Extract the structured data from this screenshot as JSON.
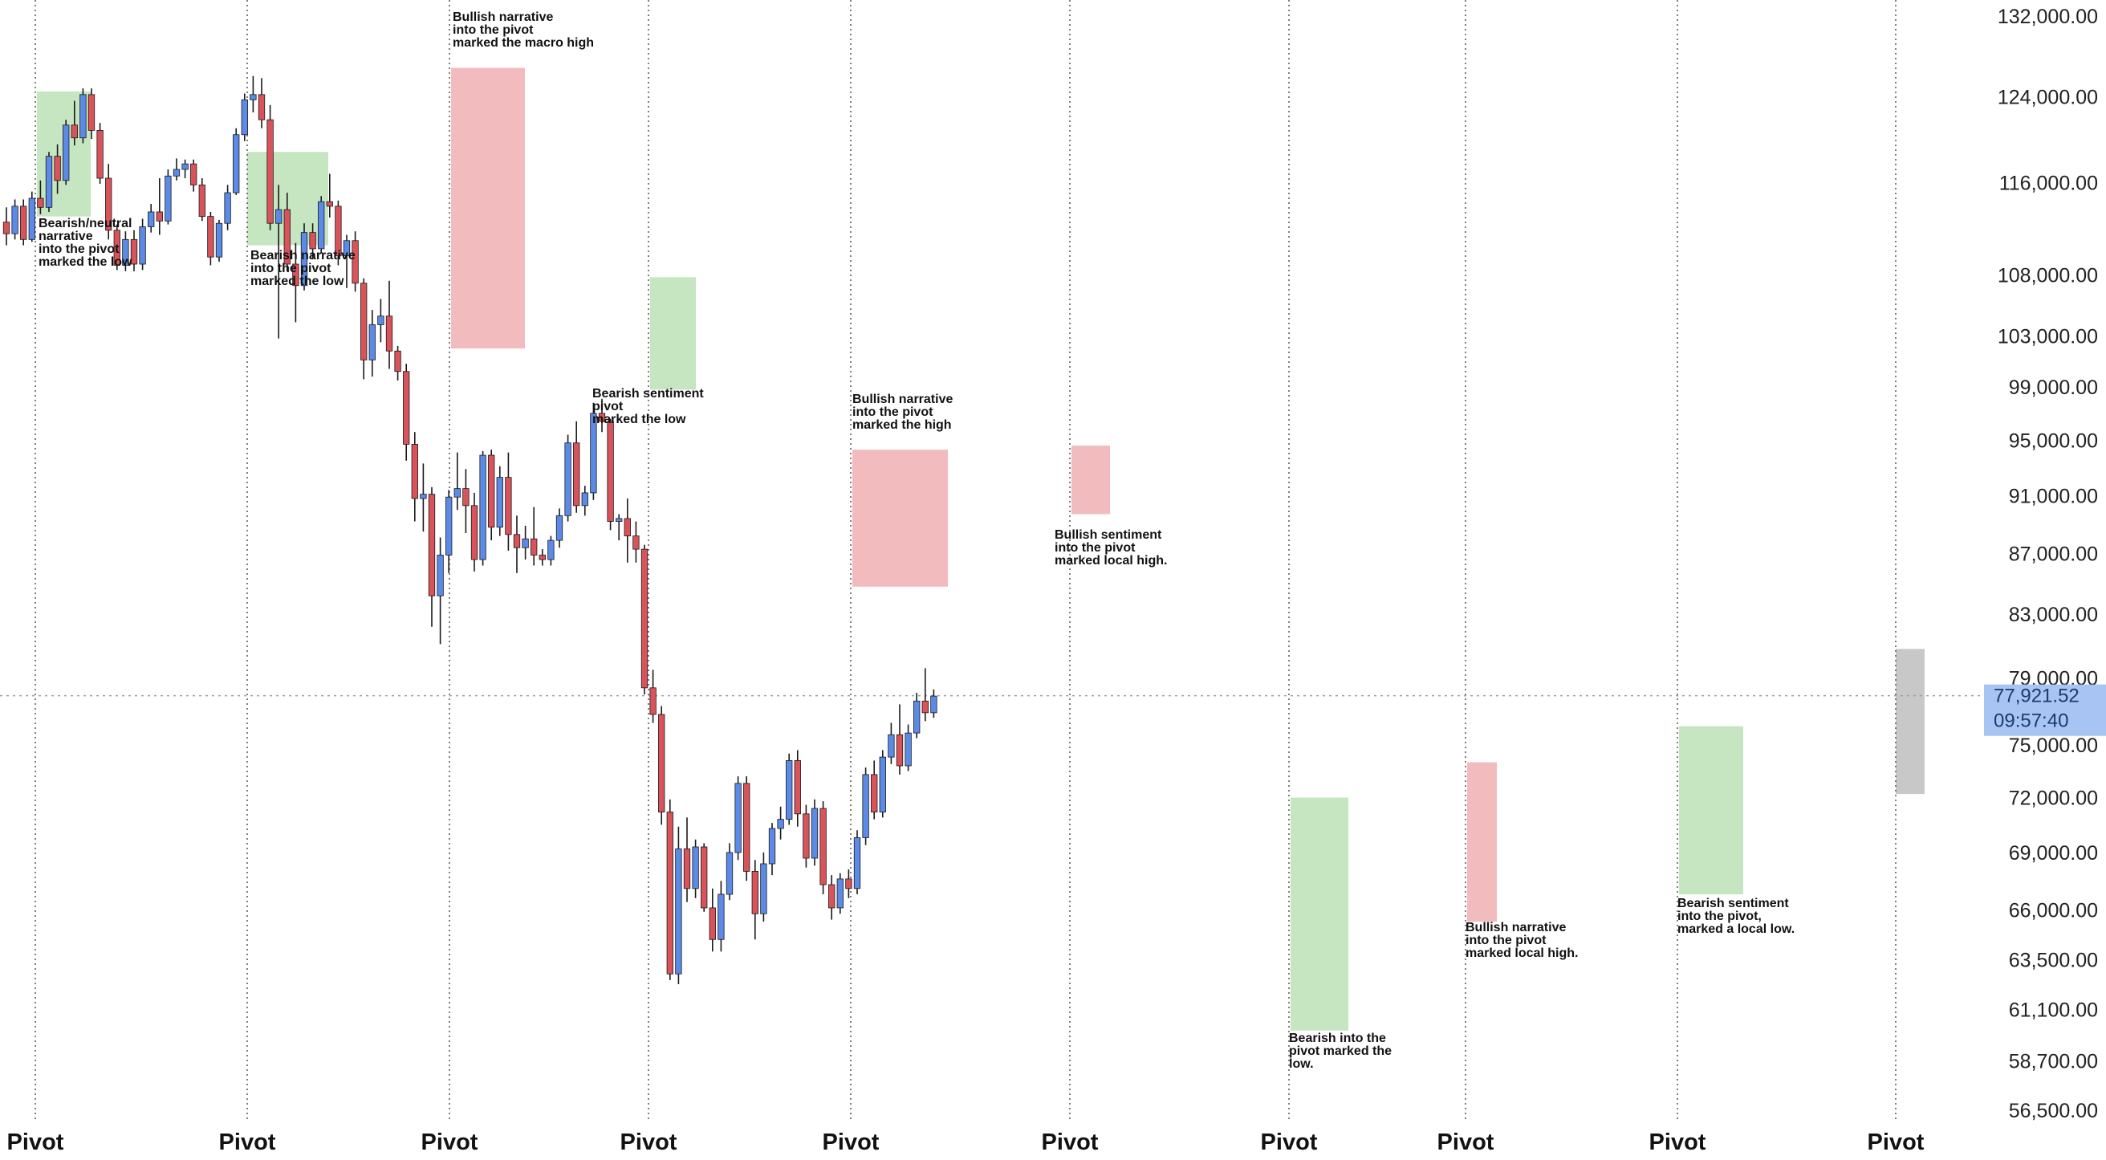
{
  "colors": {
    "up": "#5b8be6",
    "down": "#d9535b",
    "zone_green": "#c6e5c1",
    "zone_red": "#f2bbbe",
    "zone_grey": "#c8c8c8",
    "price_tag": "#a8c4f3"
  },
  "chart_data": {
    "type": "candlestick",
    "title": "",
    "ylabel": "",
    "xlabel": "",
    "ylim": [
      56500,
      132000
    ],
    "y_scale": "log",
    "y_ticks": [
      "132,000.00",
      "124,000.00",
      "116,000.00",
      "108,000.00",
      "103,000.00",
      "99,000.00",
      "95,000.00",
      "91,000.00",
      "87,000.00",
      "83,000.00",
      "79,000.00",
      "75,000.00",
      "72,000.00",
      "69,000.00",
      "66,000.00",
      "63,500.00",
      "61,100.00",
      "58,700.00",
      "56,500.00"
    ],
    "y_tick_values": [
      132000,
      124000,
      116000,
      108000,
      103000,
      99000,
      95000,
      91000,
      87000,
      83000,
      79000,
      75000,
      72000,
      69000,
      66000,
      63500,
      61100,
      58700,
      56500
    ],
    "x_labels": [
      "Pivot",
      "Pivot",
      "Pivot",
      "Pivot",
      "Pivot",
      "Pivot",
      "Pivot",
      "Pivot",
      "Pivot",
      "Pivot"
    ],
    "current_price": "77,921.52",
    "current_price_value": 77921.52,
    "countdown": "09:57:40",
    "series": [
      {
        "ohlc": [
          [
            112500,
            113800,
            110500,
            111500
          ],
          [
            111500,
            114500,
            111000,
            113900
          ],
          [
            113900,
            114500,
            110500,
            111000
          ],
          [
            111000,
            115200,
            110800,
            114600
          ],
          [
            114600,
            116200,
            113200,
            113800
          ],
          [
            113800,
            118800,
            113400,
            118400
          ],
          [
            118400,
            119500,
            115000,
            116200
          ],
          [
            116200,
            121800,
            115800,
            121300
          ],
          [
            121300,
            123600,
            119400,
            120100
          ],
          [
            120100,
            124800,
            119600,
            124200
          ],
          [
            124200,
            124800,
            120000,
            120800
          ],
          [
            120800,
            121500,
            115900,
            116400
          ],
          [
            116400,
            117700,
            111000,
            111800
          ],
          [
            111800,
            112300,
            108400,
            108800
          ],
          [
            108800,
            111700,
            108300,
            111000
          ],
          [
            111000,
            111800,
            108300,
            108900
          ],
          [
            108900,
            112800,
            108400,
            112100
          ],
          [
            112100,
            114100,
            111600,
            113400
          ],
          [
            113400,
            116400,
            111400,
            112600
          ],
          [
            112600,
            117200,
            112300,
            116600
          ],
          [
            116600,
            118200,
            116200,
            117200
          ],
          [
            117200,
            118100,
            116400,
            117700
          ],
          [
            117700,
            118100,
            115200,
            115800
          ],
          [
            115800,
            116400,
            112600,
            113000
          ],
          [
            113000,
            113400,
            108800,
            109500
          ],
          [
            109500,
            112700,
            109100,
            112400
          ],
          [
            112400,
            115800,
            111800,
            115100
          ],
          [
            115100,
            121000,
            114900,
            120400
          ],
          [
            120400,
            124300,
            119800,
            123700
          ],
          [
            123700,
            126000,
            122500,
            124200
          ],
          [
            124200,
            125800,
            121000,
            121800
          ],
          [
            121800,
            123200,
            111800,
            112400
          ],
          [
            112400,
            115800,
            102800,
            113600
          ],
          [
            113600,
            115100,
            108300,
            108900
          ],
          [
            108900,
            110700,
            104100,
            107100
          ],
          [
            107100,
            112400,
            106700,
            111600
          ],
          [
            111600,
            112400,
            109300,
            110200
          ],
          [
            110200,
            114800,
            109800,
            114300
          ],
          [
            114300,
            116800,
            112900,
            113900
          ],
          [
            113900,
            114400,
            108800,
            109600
          ],
          [
            109600,
            111400,
            106900,
            110900
          ],
          [
            110900,
            111700,
            106600,
            107300
          ],
          [
            107300,
            107700,
            99600,
            101100
          ],
          [
            101100,
            105100,
            99800,
            103900
          ],
          [
            103900,
            106000,
            102500,
            104600
          ],
          [
            104600,
            107500,
            100400,
            101800
          ],
          [
            101800,
            102200,
            99500,
            100200
          ],
          [
            100200,
            100800,
            93500,
            94700
          ],
          [
            94700,
            95600,
            89200,
            90800
          ],
          [
            90800,
            93300,
            88500,
            91100
          ],
          [
            91100,
            91600,
            82200,
            84200
          ],
          [
            84200,
            88100,
            81100,
            86900
          ],
          [
            86900,
            91400,
            85700,
            90900
          ],
          [
            90900,
            94100,
            90000,
            91500
          ],
          [
            91500,
            92900,
            88400,
            90300
          ],
          [
            90300,
            91200,
            85800,
            86600
          ],
          [
            86600,
            94200,
            86200,
            93900
          ],
          [
            93900,
            94300,
            87900,
            88800
          ],
          [
            88800,
            93100,
            88200,
            92300
          ],
          [
            92300,
            94100,
            87200,
            88300
          ],
          [
            88300,
            89600,
            85700,
            87400
          ],
          [
            87400,
            88900,
            86600,
            88000
          ],
          [
            88000,
            90200,
            86200,
            86900
          ],
          [
            86900,
            87300,
            86200,
            86600
          ],
          [
            86600,
            88200,
            86200,
            87900
          ],
          [
            87900,
            90100,
            87400,
            89600
          ],
          [
            89600,
            95400,
            89200,
            94800
          ],
          [
            94800,
            96400,
            89800,
            90300
          ],
          [
            90300,
            91700,
            89600,
            91200
          ],
          [
            91200,
            97800,
            90700,
            97000
          ],
          [
            97000,
            98100,
            95600,
            96400
          ],
          [
            96400,
            96600,
            88600,
            89200
          ],
          [
            89200,
            89700,
            87900,
            89400
          ],
          [
            89400,
            90800,
            86400,
            88200
          ],
          [
            88200,
            89200,
            86400,
            87300
          ],
          [
            87300,
            87600,
            78000,
            78400
          ],
          [
            78400,
            79500,
            76300,
            76800
          ],
          [
            76800,
            77300,
            70500,
            71200
          ],
          [
            71200,
            71900,
            62500,
            62800
          ],
          [
            62800,
            70400,
            62300,
            69200
          ],
          [
            69200,
            70900,
            66400,
            67100
          ],
          [
            67100,
            69700,
            66600,
            69300
          ],
          [
            69300,
            69500,
            65900,
            66100
          ],
          [
            66100,
            67100,
            63900,
            64500
          ],
          [
            64500,
            67500,
            63900,
            66800
          ],
          [
            66800,
            69500,
            66500,
            69000
          ],
          [
            69000,
            73200,
            68600,
            72800
          ],
          [
            72800,
            73200,
            67500,
            68000
          ],
          [
            68000,
            68600,
            64500,
            65800
          ],
          [
            65800,
            69000,
            65400,
            68400
          ],
          [
            68400,
            70600,
            67800,
            70300
          ],
          [
            70300,
            71500,
            69700,
            70800
          ],
          [
            70800,
            74500,
            70500,
            74100
          ],
          [
            74100,
            74700,
            70400,
            71100
          ],
          [
            71100,
            71600,
            68200,
            68700
          ],
          [
            68700,
            71900,
            68300,
            71400
          ],
          [
            71400,
            71800,
            66800,
            67300
          ],
          [
            67300,
            67800,
            65500,
            66100
          ],
          [
            66100,
            67900,
            65800,
            67600
          ],
          [
            67600,
            68100,
            66600,
            67100
          ],
          [
            67100,
            70200,
            66800,
            69800
          ],
          [
            69800,
            73700,
            69400,
            73300
          ],
          [
            73300,
            74100,
            70800,
            71200
          ],
          [
            71200,
            74700,
            70900,
            74300
          ],
          [
            74300,
            76300,
            73900,
            75600
          ],
          [
            75600,
            77400,
            73300,
            73800
          ],
          [
            73800,
            76200,
            73500,
            75700
          ],
          [
            75700,
            78100,
            75400,
            77600
          ],
          [
            77600,
            79600,
            76400,
            76900
          ],
          [
            76900,
            78300,
            76600,
            77900
          ]
        ]
      }
    ],
    "annotations": [
      "Bearish/neutral narrative into the pivot marked the low",
      "Bearish narrative into the pivot marked the low",
      "Bullish narrative into the pivot marked the macro high",
      "Bearish sentiment pivot marked the low",
      "Bullish narrative into the pivot marked the high",
      "Bullish sentiment into the pivot marked local high.",
      "Bearish into the pivot marked the low.",
      "Bullish narrative into the pivot marked local high.",
      "Bearish sentiment into the pivot, marked a local low."
    ],
    "annotation_lines": [
      [
        "Bearish/neutral",
        "narrative",
        "into the pivot",
        "marked the low"
      ],
      [
        "Bearish narrative",
        "into the pivot",
        "marked the low"
      ],
      [
        "Bullish narrative",
        "into the pivot",
        "marked the macro high"
      ],
      [
        "Bearish sentiment",
        "pivot",
        "marked the low"
      ],
      [
        "Bullish narrative",
        "into the pivot",
        "marked the high"
      ],
      [
        "Bullish sentiment",
        "into the pivot",
        "marked local high."
      ],
      [
        "Bearish into the",
        "pivot marked the",
        "low."
      ],
      [
        "Bullish narrative",
        "into the pivot",
        "marked local high."
      ],
      [
        "Bearish sentiment",
        "into the pivot,",
        "marked a local low."
      ]
    ],
    "zones": [
      {
        "kind": "green",
        "y_top": 124500,
        "y_bottom": 113000
      },
      {
        "kind": "green",
        "y_top": 118800,
        "y_bottom": 110500
      },
      {
        "kind": "red",
        "y_top": 126800,
        "y_bottom": 102000
      },
      {
        "kind": "green",
        "y_top": 107800,
        "y_bottom": 98800
      },
      {
        "kind": "red",
        "y_top": 94300,
        "y_bottom": 84800
      },
      {
        "kind": "red",
        "y_top": 94600,
        "y_bottom": 89700
      },
      {
        "kind": "green",
        "y_top": 72000,
        "y_bottom": 60100
      },
      {
        "kind": "red",
        "y_top": 74000,
        "y_bottom": 65400
      },
      {
        "kind": "green",
        "y_top": 76100,
        "y_bottom": 66800
      },
      {
        "kind": "grey",
        "y_top": 80800,
        "y_bottom": 72200
      }
    ]
  }
}
